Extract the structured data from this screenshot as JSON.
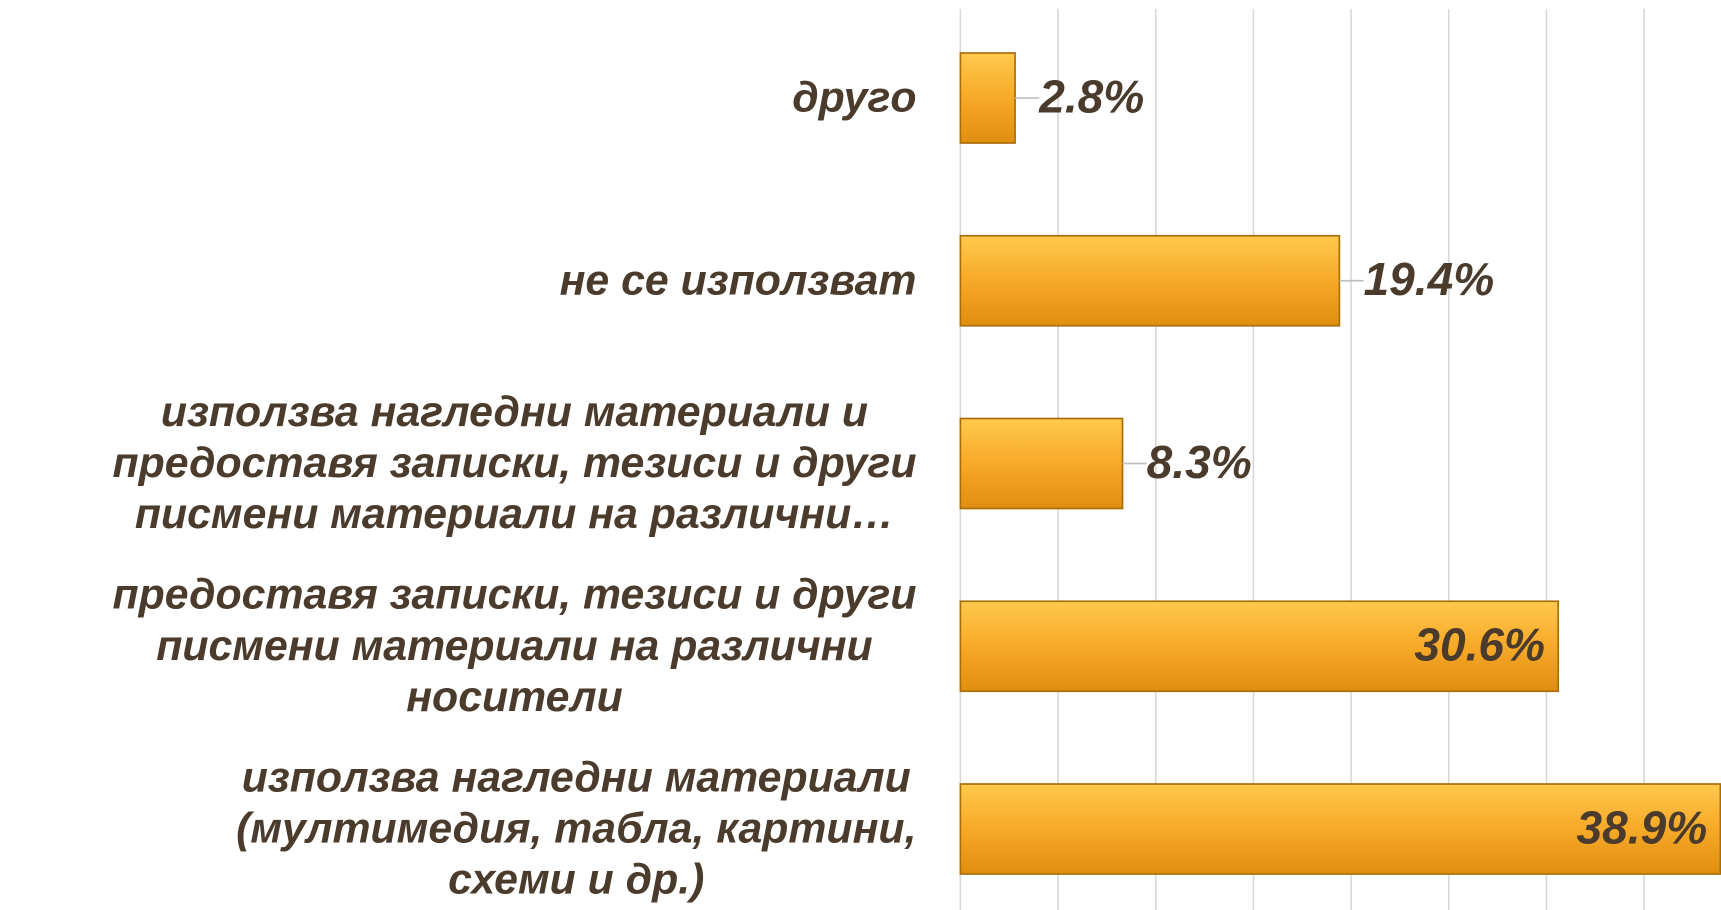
{
  "chart_data": {
    "type": "barh",
    "categories": [
      [
        "другo"
      ],
      [
        "не се използват"
      ],
      [
        "използва нагледни материали и",
        "предоставя записки, тезиси и други",
        "писмени материали  на различни…"
      ],
      [
        "предоставя записки, тезиси и други",
        "писмени материали на различни",
        "носители"
      ],
      [
        "използва нагледни материали",
        "(мултимедия, табла, картини,",
        "схеми и др.)"
      ]
    ],
    "values": [
      2.8,
      19.4,
      8.3,
      30.6,
      38.9
    ],
    "value_labels": [
      "2.8%",
      "19.4%",
      "8.3%",
      "30.6%",
      "38.9%"
    ],
    "color": "#f5a623",
    "xlim": [
      0,
      40
    ],
    "xticks": [
      0,
      5,
      10,
      15,
      20,
      25,
      30,
      35,
      40
    ],
    "grid": true
  }
}
